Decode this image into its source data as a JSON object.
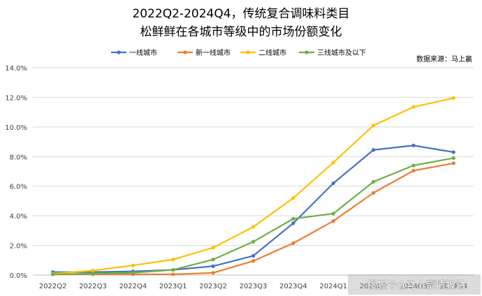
{
  "chart_data": {
    "type": "line",
    "title_line1": "2022Q2-2024Q4，传统复合调味料类目",
    "title_line2": "松鲜鲜在各城市等级中的市场份额变化",
    "source": "数据来源：马上赢",
    "watermark": "搜狐号@马上赢情报站",
    "categories": [
      "2022Q2",
      "2022Q3",
      "2022Q4",
      "2023Q1",
      "2023Q2",
      "2023Q3",
      "2023Q4",
      "2024Q1",
      "2024Q2",
      "2024Q3",
      "2024Q4"
    ],
    "yticks": [
      "0.0%",
      "2.0%",
      "4.0%",
      "6.0%",
      "8.0%",
      "10.0%",
      "12.0%",
      "14.0%"
    ],
    "ylim": [
      0,
      14
    ],
    "grid": true,
    "legend_position": "top",
    "series": [
      {
        "name": "一线城市",
        "color": "#4472C4",
        "values": [
          0.2,
          0.2,
          0.25,
          0.35,
          0.6,
          1.3,
          3.5,
          6.2,
          8.45,
          8.75,
          8.3
        ]
      },
      {
        "name": "新一线城市",
        "color": "#ED7D31",
        "values": [
          0.05,
          0.05,
          0.05,
          0.05,
          0.15,
          0.95,
          2.15,
          3.65,
          5.55,
          7.05,
          7.55
        ]
      },
      {
        "name": "二线城市",
        "color": "#FFC000",
        "values": [
          0.1,
          0.3,
          0.65,
          1.05,
          1.85,
          3.25,
          5.2,
          7.6,
          10.1,
          11.35,
          11.95
        ]
      },
      {
        "name": "三线城市及以下",
        "color": "#70AD47",
        "values": [
          0.05,
          0.1,
          0.15,
          0.35,
          1.05,
          2.25,
          3.8,
          4.15,
          6.3,
          7.4,
          7.9
        ]
      }
    ]
  }
}
